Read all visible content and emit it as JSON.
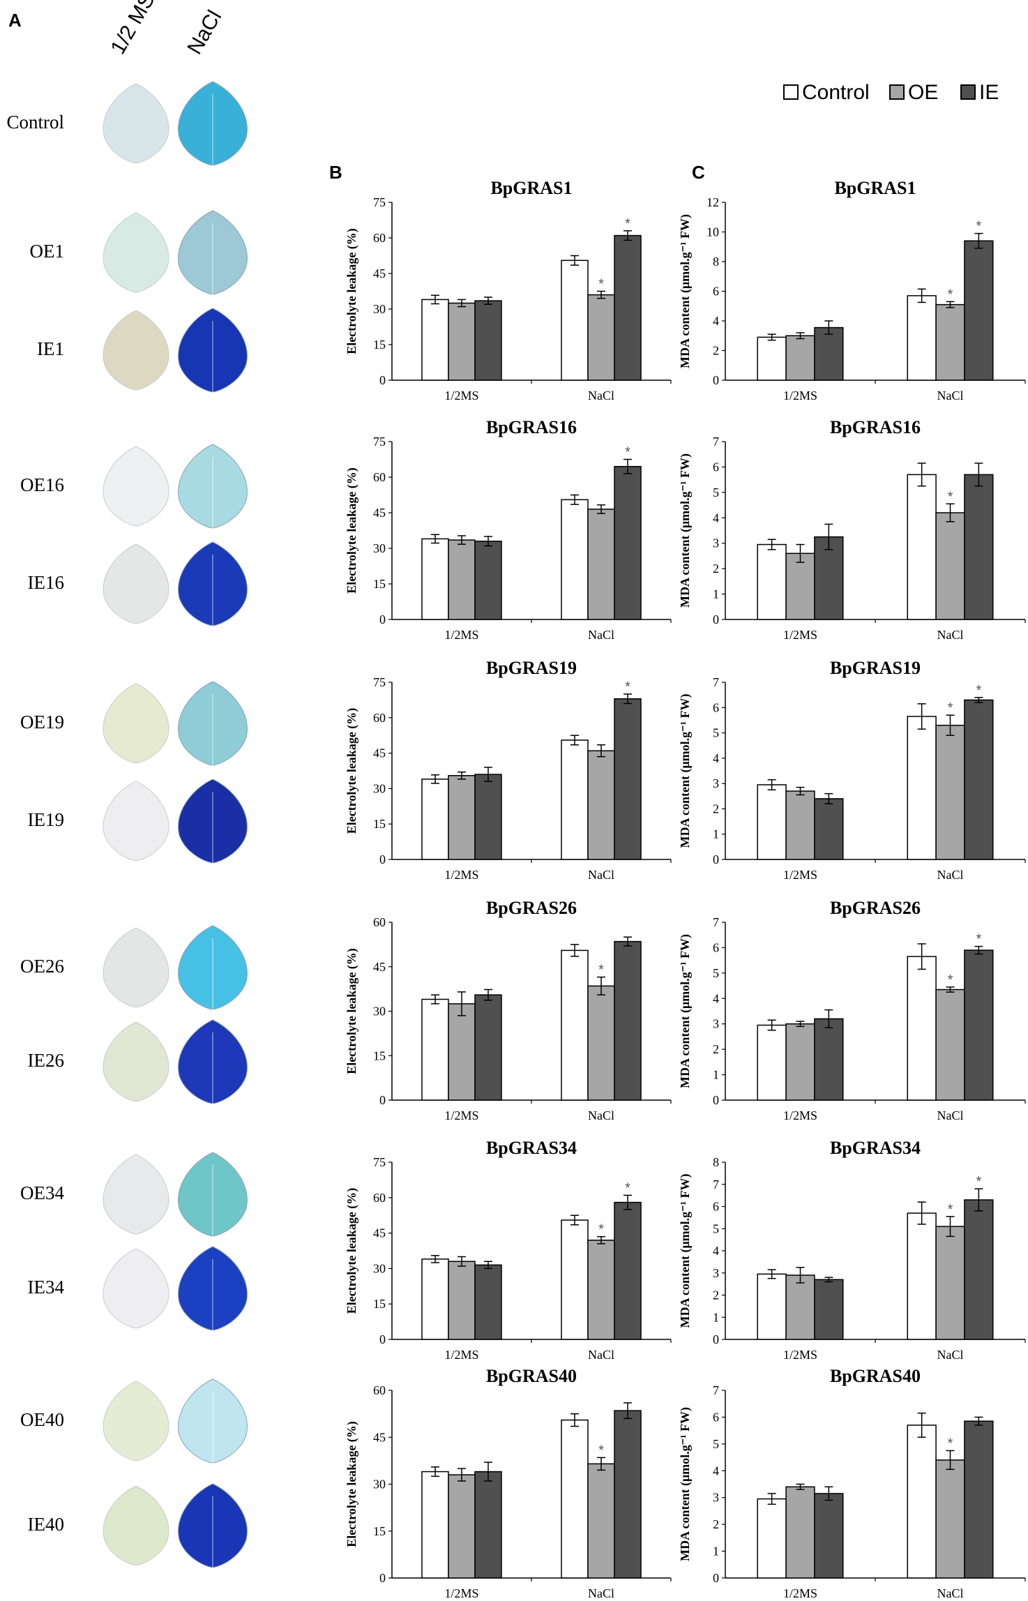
{
  "panel_labels": {
    "a": "A",
    "b": "B",
    "c": "C"
  },
  "leaf_panel": {
    "columns": [
      "1/2 MS",
      "NaCl"
    ],
    "rows": [
      {
        "label": "Control",
        "half_ms_stain": "#d8e6ea",
        "nacl_stain": "#38b0d8"
      },
      {
        "label": "OE1",
        "half_ms_stain": "#d7ebe4",
        "nacl_stain": "#9cc9d5"
      },
      {
        "label": "IE1",
        "half_ms_stain": "#ddd8c2",
        "nacl_stain": "#1736b4"
      },
      {
        "label": "OE16",
        "half_ms_stain": "#eef0f2",
        "nacl_stain": "#a8dae2"
      },
      {
        "label": "IE16",
        "half_ms_stain": "#e5e6e6",
        "nacl_stain": "#1a3ab8"
      },
      {
        "label": "OE19",
        "half_ms_stain": "#e5ead0",
        "nacl_stain": "#8ecdd6"
      },
      {
        "label": "IE19",
        "half_ms_stain": "#eeeef0",
        "nacl_stain": "#1a2fa6"
      },
      {
        "label": "OE26",
        "half_ms_stain": "#e4e6e6",
        "nacl_stain": "#46c0e4"
      },
      {
        "label": "IE26",
        "half_ms_stain": "#e1e7d2",
        "nacl_stain": "#1d38b8"
      },
      {
        "label": "OE34",
        "half_ms_stain": "#e7e9ec",
        "nacl_stain": "#6fc6c8"
      },
      {
        "label": "IE34",
        "half_ms_stain": "#eeeef2",
        "nacl_stain": "#1c40c2"
      },
      {
        "label": "OE40",
        "half_ms_stain": "#e6ebd4",
        "nacl_stain": "#bfe6ee"
      },
      {
        "label": "IE40",
        "half_ms_stain": "#dde8cc",
        "nacl_stain": "#1936b6"
      }
    ]
  },
  "legend": [
    {
      "name": "Control",
      "color": "#ffffff"
    },
    {
      "name": "OE",
      "color": "#a6a6a6"
    },
    {
      "name": "IE",
      "color": "#505050"
    }
  ],
  "chart_data": [
    {
      "type": "bar",
      "panel": "B",
      "title": "BpGRAS1",
      "ylabel": "Electrolyte leakage (%)",
      "categories": [
        "1/2MS",
        "NaCl"
      ],
      "ylim": [
        0,
        75
      ],
      "yticks": [
        0,
        15,
        30,
        45,
        60,
        75
      ],
      "series": [
        {
          "name": "Control",
          "values": [
            34,
            50.5
          ],
          "errors": [
            1.8,
            2
          ]
        },
        {
          "name": "OE",
          "values": [
            32.5,
            36
          ],
          "errors": [
            1.5,
            1.5
          ]
        },
        {
          "name": "IE",
          "values": [
            33.5,
            61
          ],
          "errors": [
            1.5,
            2
          ]
        }
      ],
      "significant": [
        [
          false,
          false
        ],
        [
          false,
          true
        ],
        [
          false,
          true
        ]
      ]
    },
    {
      "type": "bar",
      "panel": "C",
      "title": "BpGRAS1",
      "ylabel": "MDA content (μmol.g⁻¹ FW)",
      "categories": [
        "1/2MS",
        "NaCl"
      ],
      "ylim": [
        0,
        12
      ],
      "yticks": [
        0,
        2,
        4,
        6,
        8,
        10,
        12
      ],
      "series": [
        {
          "name": "Control",
          "values": [
            2.9,
            5.7
          ],
          "errors": [
            0.2,
            0.45
          ]
        },
        {
          "name": "OE",
          "values": [
            3,
            5.1
          ],
          "errors": [
            0.2,
            0.2
          ]
        },
        {
          "name": "IE",
          "values": [
            3.55,
            9.4
          ],
          "errors": [
            0.45,
            0.5
          ]
        }
      ],
      "significant": [
        [
          false,
          false
        ],
        [
          false,
          true
        ],
        [
          false,
          true
        ]
      ]
    },
    {
      "type": "bar",
      "panel": "B",
      "title": "BpGRAS16",
      "ylabel": "Electrolyte leakage (%)",
      "categories": [
        "1/2MS",
        "NaCl"
      ],
      "ylim": [
        0,
        75
      ],
      "yticks": [
        0,
        15,
        30,
        45,
        60,
        75
      ],
      "series": [
        {
          "name": "Control",
          "values": [
            34,
            50.5
          ],
          "errors": [
            1.8,
            2
          ]
        },
        {
          "name": "OE",
          "values": [
            33.5,
            46.5
          ],
          "errors": [
            1.8,
            1.8
          ]
        },
        {
          "name": "IE",
          "values": [
            33,
            64.5
          ],
          "errors": [
            2,
            3
          ]
        }
      ],
      "significant": [
        [
          false,
          false
        ],
        [
          false,
          false
        ],
        [
          false,
          true
        ]
      ]
    },
    {
      "type": "bar",
      "panel": "C",
      "title": "BpGRAS16",
      "ylabel": "MDA content (μmol.g⁻¹ FW)",
      "categories": [
        "1/2MS",
        "NaCl"
      ],
      "ylim": [
        0,
        7
      ],
      "yticks": [
        0,
        1,
        2,
        3,
        4,
        5,
        6,
        7
      ],
      "series": [
        {
          "name": "Control",
          "values": [
            2.95,
            5.7
          ],
          "errors": [
            0.2,
            0.45
          ]
        },
        {
          "name": "OE",
          "values": [
            2.6,
            4.2
          ],
          "errors": [
            0.35,
            0.35
          ]
        },
        {
          "name": "IE",
          "values": [
            3.25,
            5.7
          ],
          "errors": [
            0.5,
            0.45
          ]
        }
      ],
      "significant": [
        [
          false,
          false
        ],
        [
          false,
          true
        ],
        [
          false,
          false
        ]
      ]
    },
    {
      "type": "bar",
      "panel": "B",
      "title": "BpGRAS19",
      "ylabel": "Electrolyte leakage (%)",
      "categories": [
        "1/2MS",
        "NaCl"
      ],
      "ylim": [
        0,
        75
      ],
      "yticks": [
        0,
        15,
        30,
        45,
        60,
        75
      ],
      "series": [
        {
          "name": "Control",
          "values": [
            34,
            50.5
          ],
          "errors": [
            1.8,
            2
          ]
        },
        {
          "name": "OE",
          "values": [
            35.5,
            46
          ],
          "errors": [
            1.5,
            2.5
          ]
        },
        {
          "name": "IE",
          "values": [
            36,
            68
          ],
          "errors": [
            3,
            2
          ]
        }
      ],
      "significant": [
        [
          false,
          false
        ],
        [
          false,
          false
        ],
        [
          false,
          true
        ]
      ]
    },
    {
      "type": "bar",
      "panel": "C",
      "title": "BpGRAS19",
      "ylabel": "MDA content (μmol.g⁻¹ FW)",
      "categories": [
        "1/2MS",
        "NaCl"
      ],
      "ylim": [
        0,
        7
      ],
      "yticks": [
        0,
        1,
        2,
        3,
        4,
        5,
        6,
        7
      ],
      "series": [
        {
          "name": "Control",
          "values": [
            2.95,
            5.65
          ],
          "errors": [
            0.2,
            0.5
          ]
        },
        {
          "name": "OE",
          "values": [
            2.7,
            5.3
          ],
          "errors": [
            0.15,
            0.4
          ]
        },
        {
          "name": "IE",
          "values": [
            2.4,
            6.3
          ],
          "errors": [
            0.2,
            0.1
          ]
        }
      ],
      "significant": [
        [
          false,
          false
        ],
        [
          false,
          true
        ],
        [
          false,
          true
        ]
      ]
    },
    {
      "type": "bar",
      "panel": "B",
      "title": "BpGRAS26",
      "ylabel": "Electrolyte leakage (%)",
      "categories": [
        "1/2MS",
        "NaCl"
      ],
      "ylim": [
        0,
        60
      ],
      "yticks": [
        0,
        15,
        30,
        45,
        60
      ],
      "series": [
        {
          "name": "Control",
          "values": [
            34,
            50.5
          ],
          "errors": [
            1.5,
            2
          ]
        },
        {
          "name": "OE",
          "values": [
            32.5,
            38.5
          ],
          "errors": [
            4,
            3
          ]
        },
        {
          "name": "IE",
          "values": [
            35.5,
            53.5
          ],
          "errors": [
            1.8,
            1.5
          ]
        }
      ],
      "significant": [
        [
          false,
          false
        ],
        [
          false,
          true
        ],
        [
          false,
          false
        ]
      ]
    },
    {
      "type": "bar",
      "panel": "C",
      "title": "BpGRAS26",
      "ylabel": "MDA content (μmol.g⁻¹ FW)",
      "categories": [
        "1/2MS",
        "NaCl"
      ],
      "ylim": [
        0,
        7
      ],
      "yticks": [
        0,
        1,
        2,
        3,
        4,
        5,
        6,
        7
      ],
      "series": [
        {
          "name": "Control",
          "values": [
            2.95,
            5.65
          ],
          "errors": [
            0.2,
            0.5
          ]
        },
        {
          "name": "OE",
          "values": [
            3,
            4.35
          ],
          "errors": [
            0.1,
            0.1
          ]
        },
        {
          "name": "IE",
          "values": [
            3.2,
            5.9
          ],
          "errors": [
            0.35,
            0.15
          ]
        }
      ],
      "significant": [
        [
          false,
          false
        ],
        [
          false,
          true
        ],
        [
          false,
          true
        ]
      ]
    },
    {
      "type": "bar",
      "panel": "B",
      "title": "BpGRAS34",
      "ylabel": "Electrolyte leakage (%)",
      "categories": [
        "1/2MS",
        "NaCl"
      ],
      "ylim": [
        0,
        75
      ],
      "yticks": [
        0,
        15,
        30,
        45,
        60,
        75
      ],
      "series": [
        {
          "name": "Control",
          "values": [
            34,
            50.5
          ],
          "errors": [
            1.5,
            2
          ]
        },
        {
          "name": "OE",
          "values": [
            33,
            42
          ],
          "errors": [
            2,
            1.5
          ]
        },
        {
          "name": "IE",
          "values": [
            31.5,
            58
          ],
          "errors": [
            1.5,
            3
          ]
        }
      ],
      "significant": [
        [
          false,
          false
        ],
        [
          false,
          true
        ],
        [
          false,
          true
        ]
      ]
    },
    {
      "type": "bar",
      "panel": "C",
      "title": "BpGRAS34",
      "ylabel": "MDA content (μmol.g⁻¹ FW)",
      "categories": [
        "1/2MS",
        "NaCl"
      ],
      "ylim": [
        0,
        8
      ],
      "yticks": [
        0,
        1,
        2,
        3,
        4,
        5,
        6,
        7,
        8
      ],
      "series": [
        {
          "name": "Control",
          "values": [
            2.95,
            5.7
          ],
          "errors": [
            0.2,
            0.5
          ]
        },
        {
          "name": "OE",
          "values": [
            2.9,
            5.1
          ],
          "errors": [
            0.35,
            0.45
          ]
        },
        {
          "name": "IE",
          "values": [
            2.7,
            6.3
          ],
          "errors": [
            0.1,
            0.5
          ]
        }
      ],
      "significant": [
        [
          false,
          false
        ],
        [
          false,
          true
        ],
        [
          false,
          true
        ]
      ]
    },
    {
      "type": "bar",
      "panel": "B",
      "title": "BpGRAS40",
      "ylabel": "Electrolyte leakage (%)",
      "categories": [
        "1/2MS",
        "NaCl"
      ],
      "ylim": [
        0,
        60
      ],
      "yticks": [
        0,
        15,
        30,
        45,
        60
      ],
      "series": [
        {
          "name": "Control",
          "values": [
            34,
            50.5
          ],
          "errors": [
            1.5,
            2
          ]
        },
        {
          "name": "OE",
          "values": [
            33,
            36.5
          ],
          "errors": [
            2,
            2
          ]
        },
        {
          "name": "IE",
          "values": [
            34,
            53.5
          ],
          "errors": [
            3,
            2.5
          ]
        }
      ],
      "significant": [
        [
          false,
          false
        ],
        [
          false,
          true
        ],
        [
          false,
          false
        ]
      ]
    },
    {
      "type": "bar",
      "panel": "C",
      "title": "BpGRAS40",
      "ylabel": "MDA content (μmol.g⁻¹ FW)",
      "categories": [
        "1/2MS",
        "NaCl"
      ],
      "ylim": [
        0,
        7
      ],
      "yticks": [
        0,
        1,
        2,
        3,
        4,
        5,
        6,
        7
      ],
      "series": [
        {
          "name": "Control",
          "values": [
            2.95,
            5.7
          ],
          "errors": [
            0.2,
            0.45
          ]
        },
        {
          "name": "OE",
          "values": [
            3.4,
            4.4
          ],
          "errors": [
            0.1,
            0.35
          ]
        },
        {
          "name": "IE",
          "values": [
            3.15,
            5.85
          ],
          "errors": [
            0.25,
            0.15
          ]
        }
      ],
      "significant": [
        [
          false,
          false
        ],
        [
          false,
          true
        ],
        [
          false,
          false
        ]
      ]
    }
  ]
}
